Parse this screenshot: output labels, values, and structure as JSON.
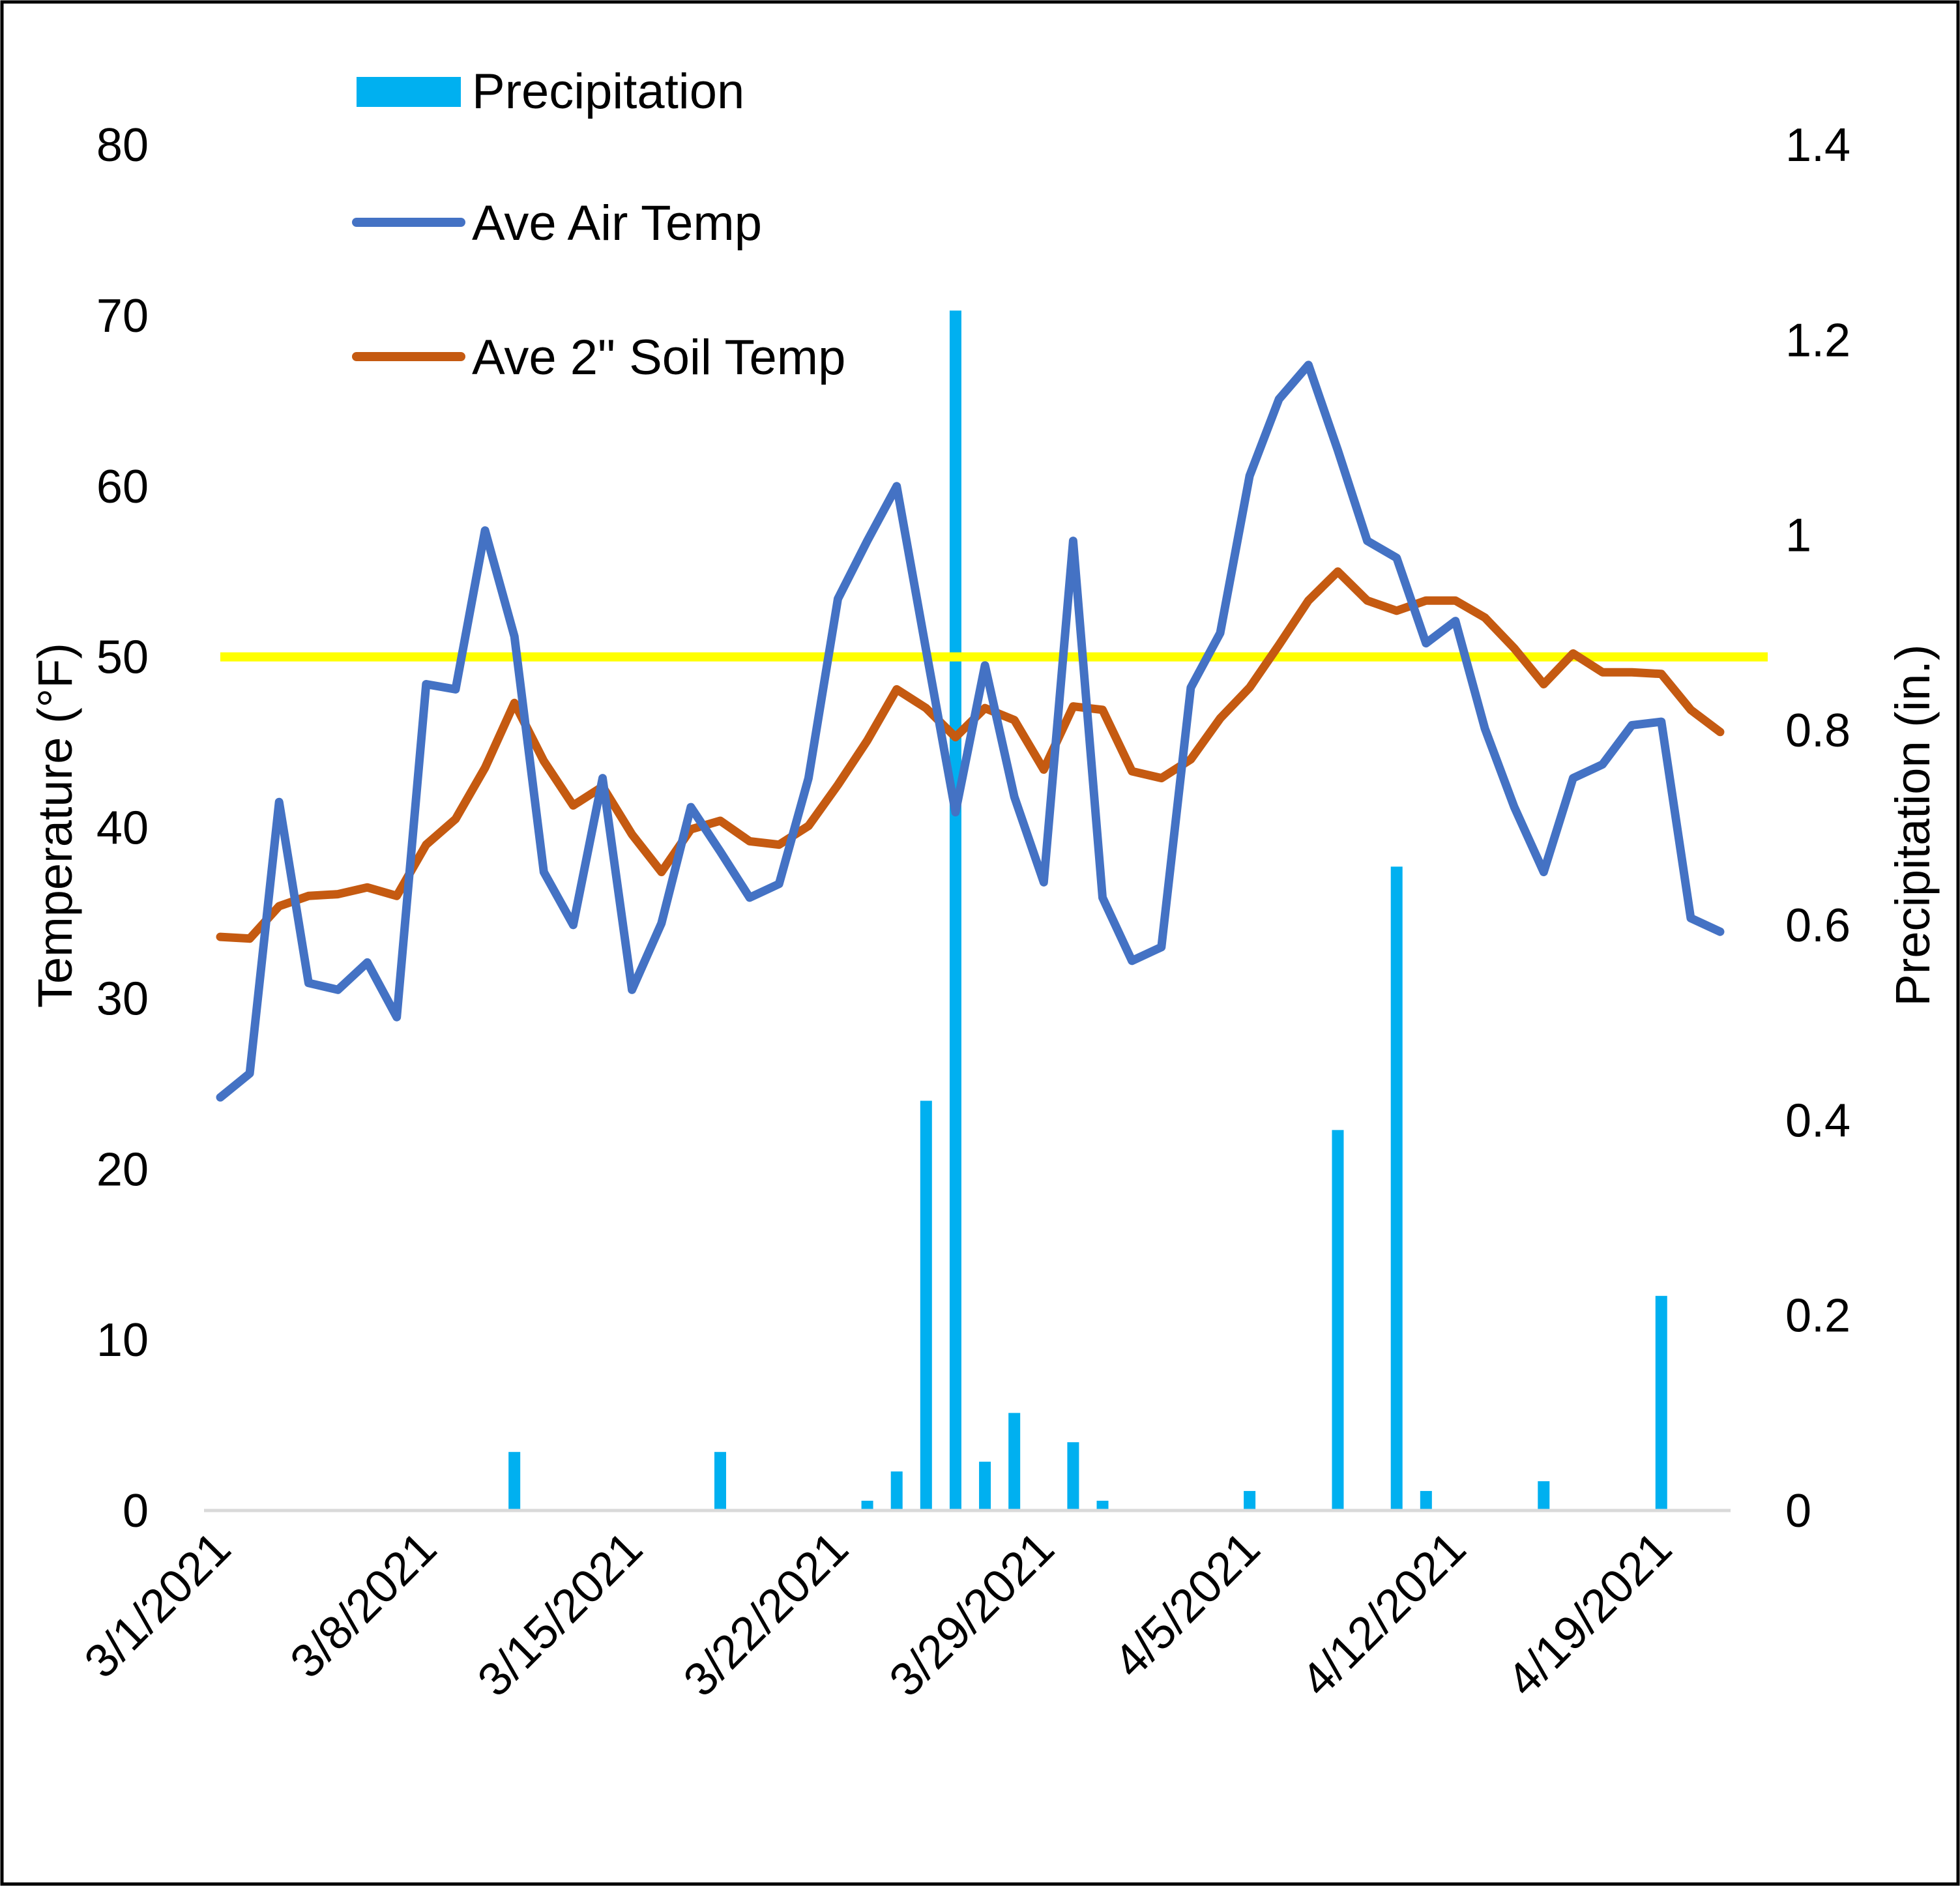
{
  "chart_data": {
    "type": "bar+line",
    "xlabel": "",
    "ylabel_left": "Temperature (°F)",
    "ylabel_right": "Precipitation (in.)",
    "ylim_left": [
      0,
      80
    ],
    "ylim_right": [
      0,
      1.4
    ],
    "yticks_left": [
      "0",
      "10",
      "20",
      "30",
      "40",
      "50",
      "60",
      "70",
      "80"
    ],
    "yticks_right": [
      "0",
      "0.2",
      "0.4",
      "0.6",
      "0.8",
      "1",
      "1.2",
      "1.4"
    ],
    "xticks": [
      "3/1/2021",
      "3/8/2021",
      "3/15/2021",
      "3/22/2021",
      "3/29/2021",
      "4/5/2021",
      "4/12/2021",
      "4/19/2021"
    ],
    "x_start": "3/1/2021",
    "x_end": "4/21/2021",
    "grid": false,
    "legend": "top-left",
    "reference_line": {
      "value": 50,
      "axis": "left",
      "color": "#FFFF00"
    },
    "series": [
      {
        "name": "Precipitation",
        "type": "bar",
        "axis": "right",
        "color": "#00B0F0",
        "points": [
          [
            "3/11/2021",
            0.06
          ],
          [
            "3/18/2021",
            0.06
          ],
          [
            "3/23/2021",
            0.01
          ],
          [
            "3/24/2021",
            0.04
          ],
          [
            "3/25/2021",
            0.42
          ],
          [
            "3/26/2021",
            1.23
          ],
          [
            "3/27/2021",
            0.05
          ],
          [
            "3/28/2021",
            0.1
          ],
          [
            "3/30/2021",
            0.07
          ],
          [
            "3/31/2021",
            0.01
          ],
          [
            "4/5/2021",
            0.02
          ],
          [
            "4/8/2021",
            0.39
          ],
          [
            "4/10/2021",
            0.66
          ],
          [
            "4/11/2021",
            0.02
          ],
          [
            "4/15/2021",
            0.03
          ],
          [
            "4/19/2021",
            0.22
          ]
        ]
      },
      {
        "name": "Ave Air Temp",
        "type": "line",
        "axis": "left",
        "color": "#4472C4",
        "values": [
          24.2,
          25.6,
          41.5,
          30.9,
          30.5,
          32.1,
          28.9,
          48.4,
          48.1,
          57.4,
          51.2,
          37.4,
          34.3,
          42.9,
          30.5,
          34.4,
          41.2,
          38.6,
          35.9,
          36.7,
          42.9,
          53.4,
          56.8,
          60.0,
          50.4,
          40.9,
          49.5,
          41.8,
          36.8,
          56.8,
          35.9,
          32.2,
          33.0,
          48.2,
          51.4,
          60.6,
          65.1,
          67.1,
          62.1,
          56.8,
          55.8,
          50.8,
          52.1,
          45.8,
          41.2,
          37.4,
          42.9,
          43.7,
          46.0,
          46.2,
          34.7,
          33.9
        ]
      },
      {
        "name": "Ave 2\" Soil Temp",
        "type": "line",
        "axis": "left",
        "color": "#C55A11",
        "values": [
          33.6,
          33.5,
          35.4,
          36.0,
          36.1,
          36.5,
          36.0,
          39.0,
          40.5,
          43.5,
          47.3,
          43.9,
          41.3,
          42.4,
          39.6,
          37.4,
          39.9,
          40.4,
          39.2,
          39.0,
          40.1,
          42.5,
          45.1,
          48.1,
          47.0,
          45.3,
          47.0,
          46.3,
          43.4,
          47.1,
          46.9,
          43.3,
          42.9,
          44.0,
          46.4,
          48.2,
          50.7,
          53.3,
          55.0,
          53.3,
          52.7,
          53.3,
          53.3,
          52.3,
          50.5,
          48.4,
          50.2,
          49.1,
          49.1,
          49.0,
          46.9,
          45.6
        ]
      }
    ]
  }
}
